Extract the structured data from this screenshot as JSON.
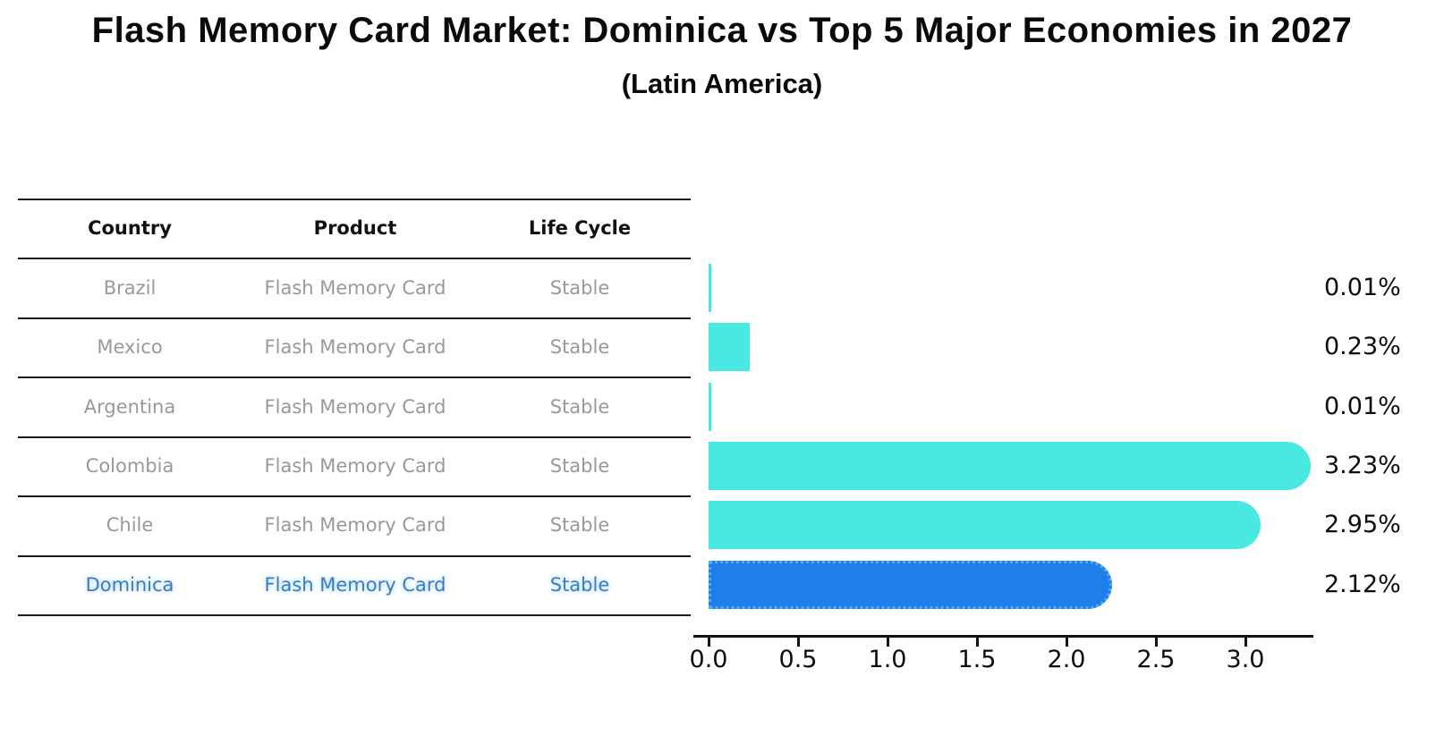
{
  "title": "Flash Memory Card Market: Dominica vs Top 5 Major Economies in 2027",
  "subtitle": "(Latin America)",
  "table": {
    "headers": [
      "Country",
      "Product",
      "Life Cycle"
    ],
    "rows": [
      {
        "country": "Brazil",
        "product": "Flash Memory Card",
        "life_cycle": "Stable",
        "highlight": false
      },
      {
        "country": "Mexico",
        "product": "Flash Memory Card",
        "life_cycle": "Stable",
        "highlight": false
      },
      {
        "country": "Argentina",
        "product": "Flash Memory Card",
        "life_cycle": "Stable",
        "highlight": false
      },
      {
        "country": "Colombia",
        "product": "Flash Memory Card",
        "life_cycle": "Stable",
        "highlight": false
      },
      {
        "country": "Chile",
        "product": "Flash Memory Card",
        "life_cycle": "Stable",
        "highlight": false
      },
      {
        "country": "Dominica",
        "product": "Flash Memory Card",
        "life_cycle": "Stable",
        "highlight": true
      }
    ]
  },
  "chart_data": {
    "type": "bar",
    "orientation": "horizontal",
    "title": "Flash Memory Card Market: Dominica vs Top 5 Major Economies in 2027",
    "subtitle": "(Latin America)",
    "categories": [
      "Brazil",
      "Mexico",
      "Argentina",
      "Colombia",
      "Chile",
      "Dominica"
    ],
    "values": [
      0.01,
      0.23,
      0.01,
      3.23,
      2.95,
      2.12
    ],
    "value_labels": [
      "0.01%",
      "0.23%",
      "0.01%",
      "3.23%",
      "2.95%",
      "2.12%"
    ],
    "x_ticks": [
      0.0,
      0.5,
      1.0,
      1.5,
      2.0,
      2.5,
      3.0
    ],
    "x_tick_labels": [
      "0.0",
      "0.5",
      "1.0",
      "1.5",
      "2.0",
      "2.5",
      "3.0"
    ],
    "xlim": [
      0,
      3.38
    ],
    "grid": false,
    "legend": "none",
    "bar_color": "#49E8E0",
    "highlight_index": 5,
    "highlight_bar_color": "#1E7FE8",
    "highlight_border_color": "#55ACF5",
    "highlight_text_color": "#3A7CC4",
    "row_text_color": "#999999"
  }
}
